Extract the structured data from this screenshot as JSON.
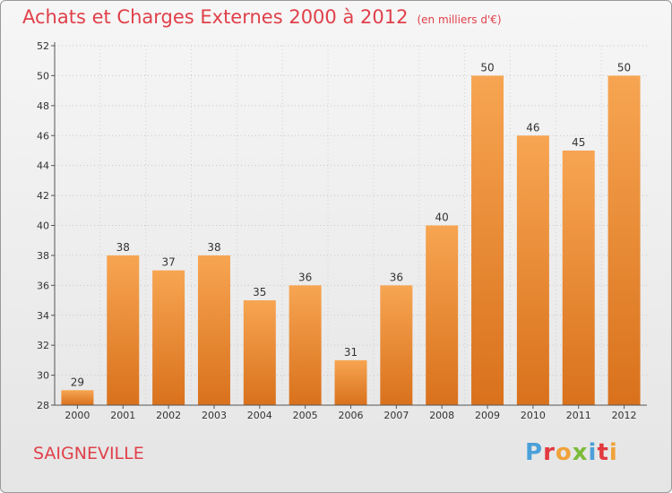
{
  "title": "Achats et Charges Externes 2000 à 2012",
  "unit": "(en milliers d'€)",
  "commune": "SAIGNEVILLE",
  "logo": {
    "text": "Proxiti",
    "letters": [
      {
        "ch": "P",
        "color": "#4aa0d8"
      },
      {
        "ch": "r",
        "color": "#e2393f"
      },
      {
        "ch": "o",
        "color": "#f0a23a"
      },
      {
        "ch": "x",
        "color": "#7bbb3a"
      },
      {
        "ch": "i",
        "color": "#4aa0d8"
      },
      {
        "ch": "t",
        "color": "#e2393f"
      },
      {
        "ch": "i",
        "color": "#f0a23a"
      }
    ]
  },
  "colors": {
    "bar_top": "#f7a552",
    "bar_bottom": "#d9711c",
    "title": "#e0404a"
  },
  "chart_data": {
    "type": "bar",
    "categories": [
      "2000",
      "2001",
      "2002",
      "2003",
      "2004",
      "2005",
      "2006",
      "2007",
      "2008",
      "2009",
      "2010",
      "2011",
      "2012"
    ],
    "values": [
      29,
      38,
      37,
      38,
      35,
      36,
      31,
      36,
      40,
      50,
      46,
      45,
      50
    ],
    "ylim": [
      28,
      52
    ],
    "yticks": [
      28,
      30,
      32,
      34,
      36,
      38,
      40,
      42,
      44,
      46,
      48,
      50,
      52
    ],
    "grid": true
  }
}
